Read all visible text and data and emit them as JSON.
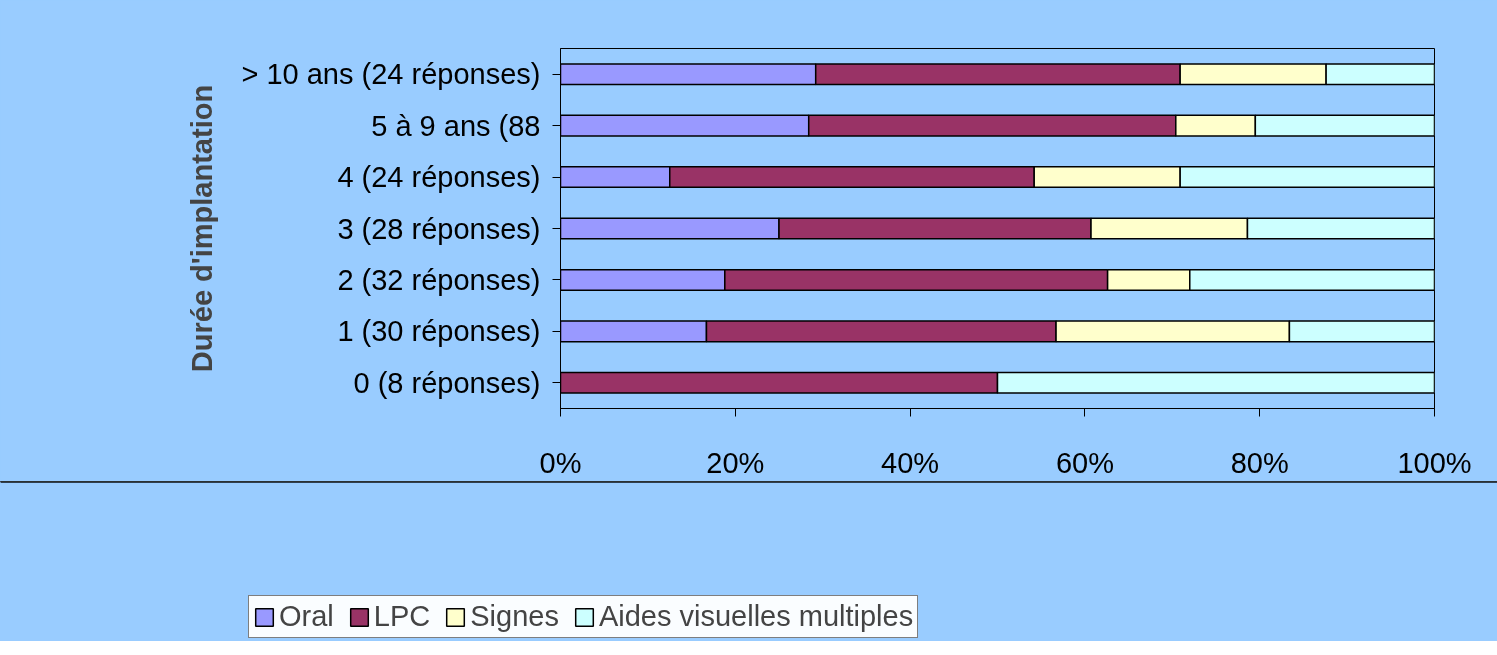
{
  "chart_data": {
    "type": "bar",
    "orientation": "horizontal",
    "stacked": true,
    "ylabel": "Durée d'implantation",
    "categories": [
      "> 10 ans (24 réponses)",
      "5 à 9 ans (88",
      "4 (24 réponses)",
      "3 (28 réponses)",
      "2 (32 réponses)",
      "1 (30 réponses)",
      "0 (8 réponses)"
    ],
    "series": [
      {
        "name": "Oral",
        "color": "#9999ff",
        "values": [
          29.2,
          28.4,
          12.5,
          25.0,
          18.8,
          16.7,
          0
        ]
      },
      {
        "name": "LPC",
        "color": "#993366",
        "values": [
          41.7,
          42.0,
          41.7,
          35.7,
          43.8,
          40.0,
          50.0
        ]
      },
      {
        "name": "Signes",
        "color": "#ffffcc",
        "values": [
          16.7,
          9.1,
          16.7,
          17.9,
          9.4,
          26.7,
          0
        ]
      },
      {
        "name": "Aides visuelles multiples",
        "color": "#ccffff",
        "values": [
          12.5,
          20.5,
          29.2,
          21.4,
          28.1,
          16.7,
          50.0
        ]
      }
    ],
    "xlim": [
      0,
      100
    ],
    "xticks": [
      {
        "value": 0,
        "label": "0%"
      },
      {
        "value": 20,
        "label": "20%"
      },
      {
        "value": 40,
        "label": "40%"
      },
      {
        "value": 60,
        "label": "60%"
      },
      {
        "value": 80,
        "label": "80%"
      },
      {
        "value": 100,
        "label": "100%"
      }
    ],
    "grid": false,
    "legend": "bottom"
  }
}
